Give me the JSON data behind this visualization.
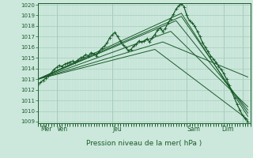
{
  "xlabel": "Pression niveau de la mer( hPa )",
  "ylim": [
    1009,
    1020
  ],
  "yticks": [
    1009,
    1010,
    1011,
    1012,
    1013,
    1014,
    1015,
    1016,
    1017,
    1018,
    1019,
    1020
  ],
  "bg_color": "#cce8dc",
  "grid_color_major": "#a8ccbc",
  "grid_color_minor": "#bcdece",
  "line_color": "#1a5c2a",
  "xlim": [
    0,
    80
  ],
  "day_vlines_x": [
    7,
    28,
    56,
    70,
    77
  ],
  "xtick_label_data": [
    {
      "x": 1,
      "label": "Mer"
    },
    {
      "x": 7,
      "label": "Ven"
    },
    {
      "x": 28,
      "label": "Jeu"
    },
    {
      "x": 56,
      "label": "Sam"
    },
    {
      "x": 69,
      "label": "Dim"
    }
  ],
  "main_line_x": [
    0,
    1,
    2,
    3,
    4,
    5,
    6,
    7,
    8,
    9,
    10,
    11,
    12,
    13,
    14,
    15,
    16,
    17,
    18,
    19,
    20,
    21,
    22,
    23,
    24,
    25,
    26,
    27,
    28,
    29,
    30,
    31,
    32,
    33,
    34,
    35,
    36,
    37,
    38,
    39,
    40,
    41,
    42,
    43,
    44,
    45,
    46,
    47,
    48,
    49,
    50,
    51,
    52,
    53,
    54,
    55,
    56,
    57,
    58,
    59,
    60,
    61,
    62,
    63,
    64,
    65,
    66,
    67,
    68,
    69,
    70,
    71,
    72,
    73,
    74,
    75,
    76,
    77,
    78,
    79
  ],
  "main_line_y": [
    1012.5,
    1012.7,
    1012.9,
    1013.1,
    1013.3,
    1013.6,
    1013.9,
    1014.1,
    1014.3,
    1014.2,
    1014.4,
    1014.5,
    1014.6,
    1014.7,
    1014.6,
    1014.8,
    1015.0,
    1015.1,
    1015.3,
    1015.2,
    1015.5,
    1015.4,
    1015.2,
    1015.6,
    1015.9,
    1016.1,
    1016.4,
    1016.9,
    1017.2,
    1017.4,
    1017.0,
    1016.6,
    1016.2,
    1016.0,
    1015.7,
    1015.8,
    1016.1,
    1016.3,
    1016.6,
    1016.5,
    1016.6,
    1016.8,
    1016.5,
    1016.9,
    1017.2,
    1017.6,
    1017.8,
    1017.5,
    1017.8,
    1018.3,
    1018.7,
    1019.1,
    1019.6,
    1019.9,
    1020.1,
    1019.8,
    1019.0,
    1018.5,
    1018.3,
    1018.0,
    1017.5,
    1017.0,
    1016.4,
    1016.0,
    1015.6,
    1015.2,
    1014.9,
    1014.6,
    1014.2,
    1013.9,
    1013.5,
    1013.0,
    1012.4,
    1011.8,
    1011.2,
    1010.6,
    1010.1,
    1009.6,
    1009.3,
    1009.0
  ],
  "forecast_lines": [
    {
      "x": [
        0,
        54,
        79
      ],
      "y": [
        1013.0,
        1019.2,
        1009.5
      ]
    },
    {
      "x": [
        0,
        54,
        79
      ],
      "y": [
        1013.0,
        1018.9,
        1009.8
      ]
    },
    {
      "x": [
        0,
        52,
        79
      ],
      "y": [
        1013.0,
        1018.5,
        1010.1
      ]
    },
    {
      "x": [
        0,
        50,
        79
      ],
      "y": [
        1013.0,
        1017.5,
        1010.4
      ]
    },
    {
      "x": [
        0,
        47,
        79
      ],
      "y": [
        1013.0,
        1016.5,
        1013.2
      ]
    },
    {
      "x": [
        0,
        44,
        79
      ],
      "y": [
        1013.0,
        1015.8,
        1009.2
      ]
    }
  ]
}
